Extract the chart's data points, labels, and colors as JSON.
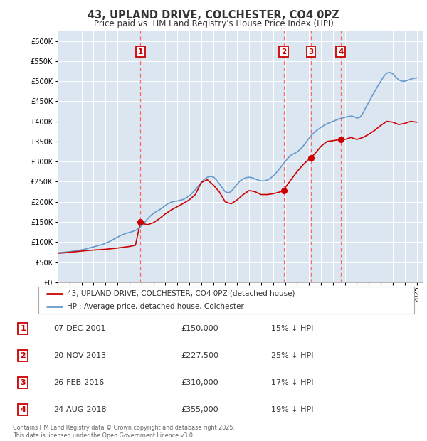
{
  "title": "43, UPLAND DRIVE, COLCHESTER, CO4 0PZ",
  "subtitle": "Price paid vs. HM Land Registry's House Price Index (HPI)",
  "background_color": "#dce6f0",
  "plot_bg_color": "#dce6f0",
  "ylim": [
    0,
    625000
  ],
  "yticks": [
    0,
    50000,
    100000,
    150000,
    200000,
    250000,
    300000,
    350000,
    400000,
    450000,
    500000,
    550000,
    600000
  ],
  "hpi_color": "#6699cc",
  "price_color": "#cc0000",
  "sale_marker_color": "#cc0000",
  "dashed_line_color": "#ff6666",
  "label_box_color": "#cc0000",
  "sales": [
    {
      "num": 1,
      "date_num": 2001.92,
      "price": 150000,
      "label": "1"
    },
    {
      "num": 2,
      "date_num": 2013.89,
      "price": 227500,
      "label": "2"
    },
    {
      "num": 3,
      "date_num": 2016.15,
      "price": 310000,
      "label": "3"
    },
    {
      "num": 4,
      "date_num": 2018.65,
      "price": 355000,
      "label": "4"
    }
  ],
  "table_rows": [
    {
      "num": "1",
      "date": "07-DEC-2001",
      "price": "£150,000",
      "pct": "15% ↓ HPI"
    },
    {
      "num": "2",
      "date": "20-NOV-2013",
      "price": "£227,500",
      "pct": "25% ↓ HPI"
    },
    {
      "num": "3",
      "date": "26-FEB-2016",
      "price": "£310,000",
      "pct": "17% ↓ HPI"
    },
    {
      "num": "4",
      "date": "24-AUG-2018",
      "price": "£355,000",
      "pct": "19% ↓ HPI"
    }
  ],
  "footnote": "Contains HM Land Registry data © Crown copyright and database right 2025.\nThis data is licensed under the Open Government Licence v3.0.",
  "legend_label_price": "43, UPLAND DRIVE, COLCHESTER, CO4 0PZ (detached house)",
  "legend_label_hpi": "HPI: Average price, detached house, Colchester",
  "hpi_data": [
    [
      1995.0,
      73000
    ],
    [
      1995.25,
      74000
    ],
    [
      1995.5,
      74500
    ],
    [
      1995.75,
      75000
    ],
    [
      1996.0,
      76000
    ],
    [
      1996.25,
      77000
    ],
    [
      1996.5,
      78000
    ],
    [
      1996.75,
      79000
    ],
    [
      1997.0,
      80500
    ],
    [
      1997.25,
      82000
    ],
    [
      1997.5,
      84000
    ],
    [
      1997.75,
      86000
    ],
    [
      1998.0,
      88000
    ],
    [
      1998.25,
      90000
    ],
    [
      1998.5,
      92000
    ],
    [
      1998.75,
      94000
    ],
    [
      1999.0,
      97000
    ],
    [
      1999.25,
      100000
    ],
    [
      1999.5,
      104000
    ],
    [
      1999.75,
      108000
    ],
    [
      2000.0,
      112000
    ],
    [
      2000.25,
      116000
    ],
    [
      2000.5,
      119000
    ],
    [
      2000.75,
      122000
    ],
    [
      2001.0,
      124000
    ],
    [
      2001.25,
      126000
    ],
    [
      2001.5,
      129000
    ],
    [
      2001.75,
      133000
    ],
    [
      2002.0,
      140000
    ],
    [
      2002.25,
      148000
    ],
    [
      2002.5,
      157000
    ],
    [
      2002.75,
      165000
    ],
    [
      2003.0,
      171000
    ],
    [
      2003.25,
      176000
    ],
    [
      2003.5,
      180000
    ],
    [
      2003.75,
      185000
    ],
    [
      2004.0,
      191000
    ],
    [
      2004.25,
      196000
    ],
    [
      2004.5,
      199000
    ],
    [
      2004.75,
      201000
    ],
    [
      2005.0,
      202000
    ],
    [
      2005.25,
      204000
    ],
    [
      2005.5,
      206000
    ],
    [
      2005.75,
      210000
    ],
    [
      2006.0,
      215000
    ],
    [
      2006.25,
      222000
    ],
    [
      2006.5,
      230000
    ],
    [
      2006.75,
      239000
    ],
    [
      2007.0,
      248000
    ],
    [
      2007.25,
      256000
    ],
    [
      2007.5,
      261000
    ],
    [
      2007.75,
      263000
    ],
    [
      2008.0,
      262000
    ],
    [
      2008.25,
      255000
    ],
    [
      2008.5,
      245000
    ],
    [
      2008.75,
      235000
    ],
    [
      2009.0,
      225000
    ],
    [
      2009.25,
      222000
    ],
    [
      2009.5,
      226000
    ],
    [
      2009.75,
      235000
    ],
    [
      2010.0,
      244000
    ],
    [
      2010.25,
      252000
    ],
    [
      2010.5,
      257000
    ],
    [
      2010.75,
      260000
    ],
    [
      2011.0,
      261000
    ],
    [
      2011.25,
      260000
    ],
    [
      2011.5,
      257000
    ],
    [
      2011.75,
      254000
    ],
    [
      2012.0,
      252000
    ],
    [
      2012.25,
      252000
    ],
    [
      2012.5,
      254000
    ],
    [
      2012.75,
      258000
    ],
    [
      2013.0,
      264000
    ],
    [
      2013.25,
      272000
    ],
    [
      2013.5,
      281000
    ],
    [
      2013.75,
      290000
    ],
    [
      2014.0,
      300000
    ],
    [
      2014.25,
      309000
    ],
    [
      2014.5,
      316000
    ],
    [
      2014.75,
      320000
    ],
    [
      2015.0,
      324000
    ],
    [
      2015.25,
      330000
    ],
    [
      2015.5,
      338000
    ],
    [
      2015.75,
      348000
    ],
    [
      2016.0,
      358000
    ],
    [
      2016.25,
      367000
    ],
    [
      2016.5,
      374000
    ],
    [
      2016.75,
      380000
    ],
    [
      2017.0,
      385000
    ],
    [
      2017.25,
      390000
    ],
    [
      2017.5,
      394000
    ],
    [
      2017.75,
      397000
    ],
    [
      2018.0,
      400000
    ],
    [
      2018.25,
      403000
    ],
    [
      2018.5,
      406000
    ],
    [
      2018.75,
      408000
    ],
    [
      2019.0,
      410000
    ],
    [
      2019.25,
      412000
    ],
    [
      2019.5,
      413000
    ],
    [
      2019.75,
      412000
    ],
    [
      2020.0,
      408000
    ],
    [
      2020.25,
      410000
    ],
    [
      2020.5,
      420000
    ],
    [
      2020.75,
      435000
    ],
    [
      2021.0,
      448000
    ],
    [
      2021.25,
      462000
    ],
    [
      2021.5,
      475000
    ],
    [
      2021.75,
      488000
    ],
    [
      2022.0,
      500000
    ],
    [
      2022.25,
      512000
    ],
    [
      2022.5,
      520000
    ],
    [
      2022.75,
      522000
    ],
    [
      2023.0,
      518000
    ],
    [
      2023.25,
      510000
    ],
    [
      2023.5,
      503000
    ],
    [
      2023.75,
      500000
    ],
    [
      2024.0,
      500000
    ],
    [
      2024.25,
      502000
    ],
    [
      2024.5,
      505000
    ],
    [
      2024.75,
      507000
    ],
    [
      2025.0,
      508000
    ]
  ],
  "price_data": [
    [
      1995.0,
      72000
    ],
    [
      1995.5,
      73000
    ],
    [
      1996.0,
      74500
    ],
    [
      1996.5,
      76000
    ],
    [
      1997.0,
      77500
    ],
    [
      1997.5,
      79000
    ],
    [
      1998.0,
      80000
    ],
    [
      1998.5,
      81000
    ],
    [
      1999.0,
      82000
    ],
    [
      1999.5,
      83500
    ],
    [
      2000.0,
      85000
    ],
    [
      2000.5,
      87000
    ],
    [
      2001.0,
      89000
    ],
    [
      2001.5,
      92000
    ],
    [
      2001.92,
      150000
    ],
    [
      2002.0,
      147000
    ],
    [
      2002.5,
      143000
    ],
    [
      2003.0,
      148000
    ],
    [
      2003.5,
      158000
    ],
    [
      2004.0,
      170000
    ],
    [
      2004.5,
      180000
    ],
    [
      2005.0,
      188000
    ],
    [
      2005.5,
      196000
    ],
    [
      2006.0,
      205000
    ],
    [
      2006.5,
      218000
    ],
    [
      2007.0,
      248000
    ],
    [
      2007.5,
      255000
    ],
    [
      2008.0,
      242000
    ],
    [
      2008.5,
      225000
    ],
    [
      2009.0,
      200000
    ],
    [
      2009.5,
      195000
    ],
    [
      2010.0,
      205000
    ],
    [
      2010.5,
      218000
    ],
    [
      2011.0,
      228000
    ],
    [
      2011.5,
      225000
    ],
    [
      2012.0,
      218000
    ],
    [
      2012.5,
      218000
    ],
    [
      2013.0,
      220000
    ],
    [
      2013.5,
      224000
    ],
    [
      2013.89,
      227500
    ],
    [
      2014.0,
      235000
    ],
    [
      2014.5,
      255000
    ],
    [
      2015.0,
      275000
    ],
    [
      2015.5,
      292000
    ],
    [
      2016.15,
      310000
    ],
    [
      2016.5,
      320000
    ],
    [
      2017.0,
      338000
    ],
    [
      2017.5,
      350000
    ],
    [
      2018.0,
      352000
    ],
    [
      2018.65,
      355000
    ],
    [
      2019.0,
      355000
    ],
    [
      2019.5,
      360000
    ],
    [
      2020.0,
      355000
    ],
    [
      2020.5,
      360000
    ],
    [
      2021.0,
      368000
    ],
    [
      2021.5,
      378000
    ],
    [
      2022.0,
      390000
    ],
    [
      2022.5,
      400000
    ],
    [
      2023.0,
      398000
    ],
    [
      2023.5,
      392000
    ],
    [
      2024.0,
      395000
    ],
    [
      2024.5,
      400000
    ],
    [
      2025.0,
      398000
    ]
  ],
  "xmin": 1995.0,
  "xmax": 2025.5,
  "xtick_years": [
    1995,
    1996,
    1997,
    1998,
    1999,
    2000,
    2001,
    2002,
    2003,
    2004,
    2005,
    2006,
    2007,
    2008,
    2009,
    2010,
    2011,
    2012,
    2013,
    2014,
    2015,
    2016,
    2017,
    2018,
    2019,
    2020,
    2021,
    2022,
    2023,
    2024,
    2025
  ]
}
